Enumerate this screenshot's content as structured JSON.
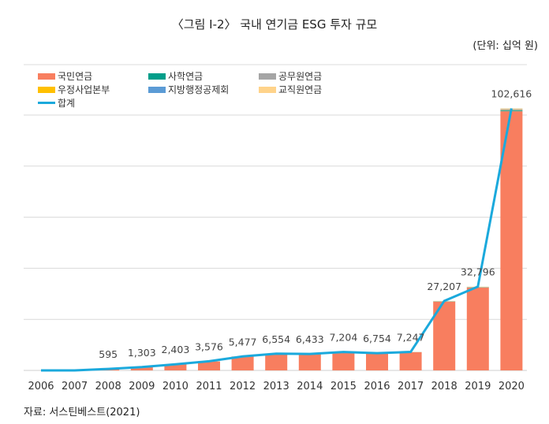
{
  "title": "〈그림 Ⅰ-2〉 국내 연기금 ESG 투자 규모",
  "unit": "(단위: 십억 원)",
  "source": "자료: 서스틴베스트(2021)",
  "chart_data": {
    "type": "bar",
    "categories": [
      "2006",
      "2007",
      "2008",
      "2009",
      "2010",
      "2011",
      "2012",
      "2013",
      "2014",
      "2015",
      "2016",
      "2017",
      "2018",
      "2019",
      "2020"
    ],
    "series": [
      {
        "name": "국민연금",
        "color": "#F87E5F",
        "values": [
          0,
          0,
          560,
          1250,
          2350,
          3500,
          5380,
          6450,
          6330,
          7100,
          6650,
          7120,
          26900,
          32400,
          101500
        ]
      },
      {
        "name": "사학연금",
        "color": "#009E8A",
        "values": [
          0,
          0,
          5,
          10,
          10,
          15,
          20,
          20,
          20,
          20,
          20,
          25,
          60,
          80,
          300
        ]
      },
      {
        "name": "공무원연금",
        "color": "#A5A5A5",
        "values": [
          0,
          0,
          10,
          15,
          15,
          20,
          25,
          30,
          30,
          30,
          30,
          35,
          80,
          100,
          300
        ]
      },
      {
        "name": "우정사업본부",
        "color": "#FFC000",
        "values": [
          0,
          0,
          5,
          8,
          8,
          11,
          12,
          14,
          13,
          14,
          14,
          17,
          47,
          56,
          116
        ]
      },
      {
        "name": "지방행정공제회",
        "color": "#5B9BD5",
        "values": [
          0,
          0,
          5,
          5,
          5,
          10,
          10,
          10,
          10,
          10,
          10,
          10,
          20,
          30,
          100
        ]
      },
      {
        "name": "교직원연금",
        "color": "#FFD38A",
        "values": [
          0,
          0,
          10,
          15,
          15,
          20,
          30,
          30,
          30,
          30,
          30,
          40,
          100,
          130,
          300
        ]
      }
    ],
    "total": {
      "name": "합계",
      "color": "#1BA9DC",
      "values": [
        0,
        0,
        595,
        1303,
        2403,
        3576,
        5477,
        6554,
        6433,
        7204,
        6754,
        7247,
        27207,
        32796,
        102616
      ],
      "labels": [
        "",
        "",
        "595",
        "1,303",
        "2,403",
        "3,576",
        "5,477",
        "6,554",
        "6,433",
        "7,204",
        "6,754",
        "7,247",
        "27,207",
        "32,796",
        "102,616"
      ]
    },
    "ylim": [
      0,
      100000
    ],
    "grid": true,
    "legend": "top-left"
  }
}
